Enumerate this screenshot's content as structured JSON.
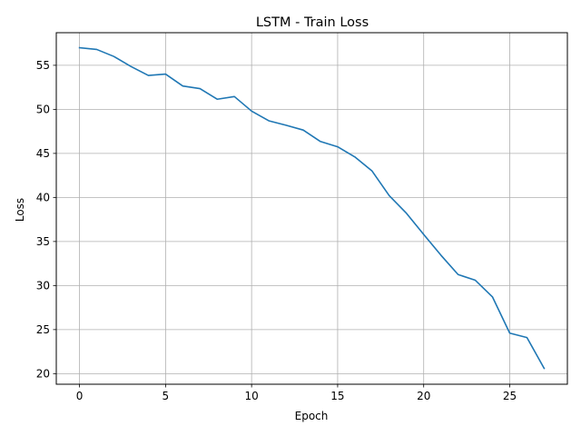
{
  "chart_data": {
    "type": "line",
    "title": "LSTM - Train Loss",
    "xlabel": "Epoch",
    "ylabel": "Loss",
    "xlim": [
      -1.35,
      28.35
    ],
    "ylim": [
      18.8,
      58.7
    ],
    "xticks": [
      0,
      5,
      10,
      15,
      20,
      25
    ],
    "yticks": [
      20,
      25,
      30,
      35,
      40,
      45,
      50,
      55
    ],
    "grid": true,
    "line_color": "#1f77b4",
    "series": [
      {
        "x": [
          0,
          1,
          2,
          3,
          4,
          5,
          6,
          7,
          8,
          9,
          10,
          11,
          12,
          13,
          14,
          15,
          16,
          17,
          18,
          19,
          20,
          21,
          22,
          23,
          24,
          25,
          26,
          27
        ],
        "values": [
          57.0,
          56.8,
          56.0,
          54.85,
          53.85,
          54.0,
          52.65,
          52.35,
          51.15,
          51.45,
          49.8,
          48.7,
          48.2,
          47.65,
          46.35,
          45.75,
          44.6,
          43.0,
          40.2,
          38.2,
          35.8,
          33.45,
          31.25,
          30.6,
          28.7,
          24.6,
          24.1,
          20.6
        ]
      }
    ]
  }
}
